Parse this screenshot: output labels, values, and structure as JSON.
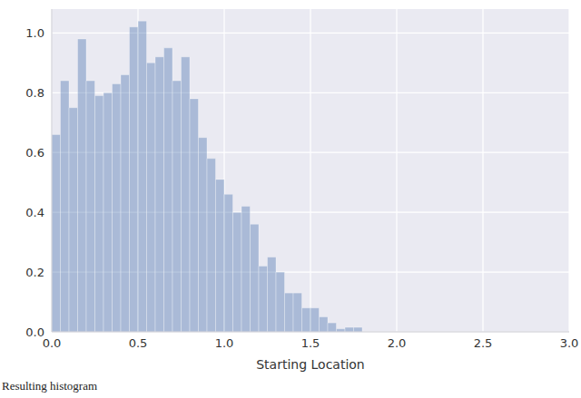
{
  "chart_data": {
    "type": "histogram",
    "x_label": "Starting Location",
    "caption": "Resulting histogram",
    "bins": [
      0,
      0.05,
      0.1,
      0.15,
      0.2,
      0.25,
      0.3,
      0.35,
      0.4,
      0.45,
      0.5,
      0.55,
      0.6,
      0.65,
      0.7,
      0.75,
      0.8,
      0.85,
      0.9,
      0.95,
      1.0,
      1.05,
      1.1,
      1.15,
      1.2,
      1.25,
      1.3,
      1.35,
      1.4,
      1.45,
      1.5,
      1.55,
      1.6,
      1.65,
      1.7,
      1.75,
      1.8
    ],
    "values": [
      0.66,
      0.84,
      0.75,
      0.98,
      0.84,
      0.79,
      0.8,
      0.83,
      0.86,
      1.02,
      1.04,
      0.9,
      0.92,
      0.95,
      0.84,
      0.92,
      0.78,
      0.65,
      0.58,
      0.51,
      0.46,
      0.4,
      0.42,
      0.36,
      0.22,
      0.25,
      0.2,
      0.13,
      0.13,
      0.08,
      0.08,
      0.05,
      0.03,
      0.01,
      0.015,
      0.015
    ],
    "color": "#4c72b0",
    "xlim": [
      0,
      3
    ],
    "xticks": [
      {
        "value": 0,
        "label": "0.0"
      },
      {
        "value": 0.5,
        "label": "0.5"
      },
      {
        "value": 1,
        "label": "1.0"
      },
      {
        "value": 1.5,
        "label": "1.5"
      },
      {
        "value": 2,
        "label": "2.0"
      },
      {
        "value": 2.5,
        "label": "2.5"
      },
      {
        "value": 3,
        "label": "3.0"
      }
    ],
    "ylim": [
      0,
      1.08
    ],
    "yticks": [
      {
        "value": 0,
        "label": "0.0"
      },
      {
        "value": 0.2,
        "label": "0.2"
      },
      {
        "value": 0.4,
        "label": "0.4"
      },
      {
        "value": 0.6,
        "label": "0.6"
      },
      {
        "value": 0.8,
        "label": "0.8"
      },
      {
        "value": 1,
        "label": "1.0"
      }
    ],
    "grid": true
  }
}
